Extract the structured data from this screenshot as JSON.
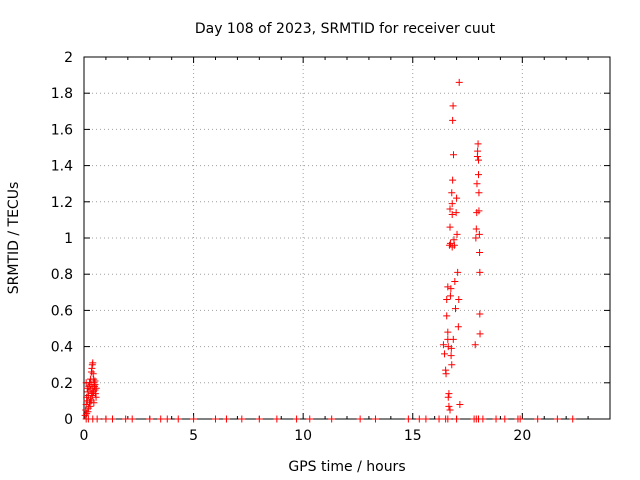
{
  "chart_data": {
    "type": "scatter",
    "title": "Day 108 of 2023, SRMTID for receiver cuut",
    "xlabel": "GPS time / hours",
    "ylabel": "SRMTID / TECUs",
    "xlim": [
      0,
      24
    ],
    "ylim": [
      0,
      2
    ],
    "xticks": [
      0,
      5,
      10,
      15,
      20
    ],
    "yticks": [
      0,
      0.2,
      0.4,
      0.6,
      0.8,
      1,
      1.2,
      1.4,
      1.6,
      1.8,
      2
    ],
    "grid": true,
    "marker": "+",
    "color": "#ff0000",
    "series": [
      {
        "name": "SRMTID",
        "points": [
          [
            0.05,
            0.02
          ],
          [
            0.08,
            0.05
          ],
          [
            0.1,
            0.08
          ],
          [
            0.12,
            0.12
          ],
          [
            0.15,
            0.1
          ],
          [
            0.18,
            0.15
          ],
          [
            0.2,
            0.13
          ],
          [
            0.22,
            0.18
          ],
          [
            0.25,
            0.2
          ],
          [
            0.28,
            0.16
          ],
          [
            0.3,
            0.22
          ],
          [
            0.32,
            0.19
          ],
          [
            0.34,
            0.26
          ],
          [
            0.36,
            0.28
          ],
          [
            0.38,
            0.3
          ],
          [
            0.4,
            0.31
          ],
          [
            0.42,
            0.25
          ],
          [
            0.44,
            0.22
          ],
          [
            0.46,
            0.2
          ],
          [
            0.48,
            0.18
          ],
          [
            0.5,
            0.16
          ],
          [
            0.52,
            0.14
          ],
          [
            0.55,
            0.12
          ],
          [
            0.1,
            0.2
          ],
          [
            0.15,
            0.17
          ],
          [
            0.2,
            0.06
          ],
          [
            0.25,
            0.09
          ],
          [
            0.3,
            0.11
          ],
          [
            0.35,
            0.14
          ],
          [
            0.4,
            0.17
          ],
          [
            0.45,
            0.09
          ],
          [
            0.5,
            0.21
          ],
          [
            0.12,
            0.03
          ],
          [
            0.18,
            0.04
          ],
          [
            0.28,
            0.07
          ],
          [
            0.33,
            0.1
          ],
          [
            0.38,
            0.13
          ],
          [
            0.43,
            0.15
          ],
          [
            0.5,
            0.19
          ],
          [
            0.56,
            0.17
          ],
          [
            0.1,
            0
          ],
          [
            0.2,
            0
          ],
          [
            0.4,
            0
          ],
          [
            0.6,
            0
          ],
          [
            1.0,
            0
          ],
          [
            1.3,
            0
          ],
          [
            1.9,
            0
          ],
          [
            2.2,
            0
          ],
          [
            3.0,
            0
          ],
          [
            3.5,
            0
          ],
          [
            3.8,
            0
          ],
          [
            4.3,
            0
          ],
          [
            5.0,
            0
          ],
          [
            6.0,
            0
          ],
          [
            6.5,
            0
          ],
          [
            7.2,
            0
          ],
          [
            8.0,
            0
          ],
          [
            8.8,
            0
          ],
          [
            9.7,
            0
          ],
          [
            10.3,
            0
          ],
          [
            11.3,
            0
          ],
          [
            12.6,
            0
          ],
          [
            13.3,
            0
          ],
          [
            14.8,
            0
          ],
          [
            15.3,
            0
          ],
          [
            15.6,
            0
          ],
          [
            16.2,
            0
          ],
          [
            16.5,
            0
          ],
          [
            16.6,
            0
          ],
          [
            17.0,
            0
          ],
          [
            17.8,
            0
          ],
          [
            17.9,
            0
          ],
          [
            18.0,
            0
          ],
          [
            18.2,
            0
          ],
          [
            18.8,
            0
          ],
          [
            19.2,
            0
          ],
          [
            19.8,
            0
          ],
          [
            19.9,
            0
          ],
          [
            20.7,
            0
          ],
          [
            21.6,
            0
          ],
          [
            22.3,
            0
          ],
          [
            16.4,
            0.41
          ],
          [
            16.45,
            0.36
          ],
          [
            16.5,
            0.27
          ],
          [
            16.52,
            0.25
          ],
          [
            16.55,
            0.57
          ],
          [
            16.55,
            0.66
          ],
          [
            16.6,
            0.73
          ],
          [
            16.6,
            0.48
          ],
          [
            16.6,
            0.44
          ],
          [
            16.62,
            0.4
          ],
          [
            16.62,
            0.12
          ],
          [
            16.65,
            0.14
          ],
          [
            16.65,
            0.07
          ],
          [
            16.68,
            0.96
          ],
          [
            16.7,
            1.06
          ],
          [
            16.7,
            1.16
          ],
          [
            16.72,
            0.97
          ],
          [
            16.72,
            0.68
          ],
          [
            16.74,
            0.72
          ],
          [
            16.75,
            0.35
          ],
          [
            16.78,
            0.3
          ],
          [
            16.78,
            1.25
          ],
          [
            16.8,
            1.19
          ],
          [
            16.8,
            1.13
          ],
          [
            16.8,
            0.95
          ],
          [
            16.82,
            1.32
          ],
          [
            16.82,
            1.65
          ],
          [
            16.84,
            1.73
          ],
          [
            16.86,
            1.46
          ],
          [
            16.88,
            0.99
          ],
          [
            16.9,
            0.96
          ],
          [
            16.92,
            0.76
          ],
          [
            16.95,
            0.61
          ],
          [
            16.98,
            1.14
          ],
          [
            17.0,
            1.22
          ],
          [
            17.02,
            1.02
          ],
          [
            17.05,
            0.81
          ],
          [
            17.08,
            0.51
          ],
          [
            17.1,
            0.66
          ],
          [
            17.12,
            1.86
          ],
          [
            17.15,
            0.08
          ],
          [
            16.7,
            0.05
          ],
          [
            16.85,
            0.44
          ],
          [
            16.76,
            0.39
          ],
          [
            17.85,
            0.41
          ],
          [
            17.88,
            1.0
          ],
          [
            17.9,
            1.05
          ],
          [
            17.92,
            1.14
          ],
          [
            17.93,
            1.3
          ],
          [
            17.95,
            1.45
          ],
          [
            17.96,
            1.48
          ],
          [
            17.98,
            1.52
          ],
          [
            18.0,
            1.43
          ],
          [
            18.0,
            1.35
          ],
          [
            18.02,
            1.25
          ],
          [
            18.02,
            1.15
          ],
          [
            18.04,
            1.02
          ],
          [
            18.05,
            0.92
          ],
          [
            18.06,
            0.81
          ],
          [
            18.06,
            0.58
          ],
          [
            18.07,
            0.47
          ]
        ]
      }
    ]
  }
}
